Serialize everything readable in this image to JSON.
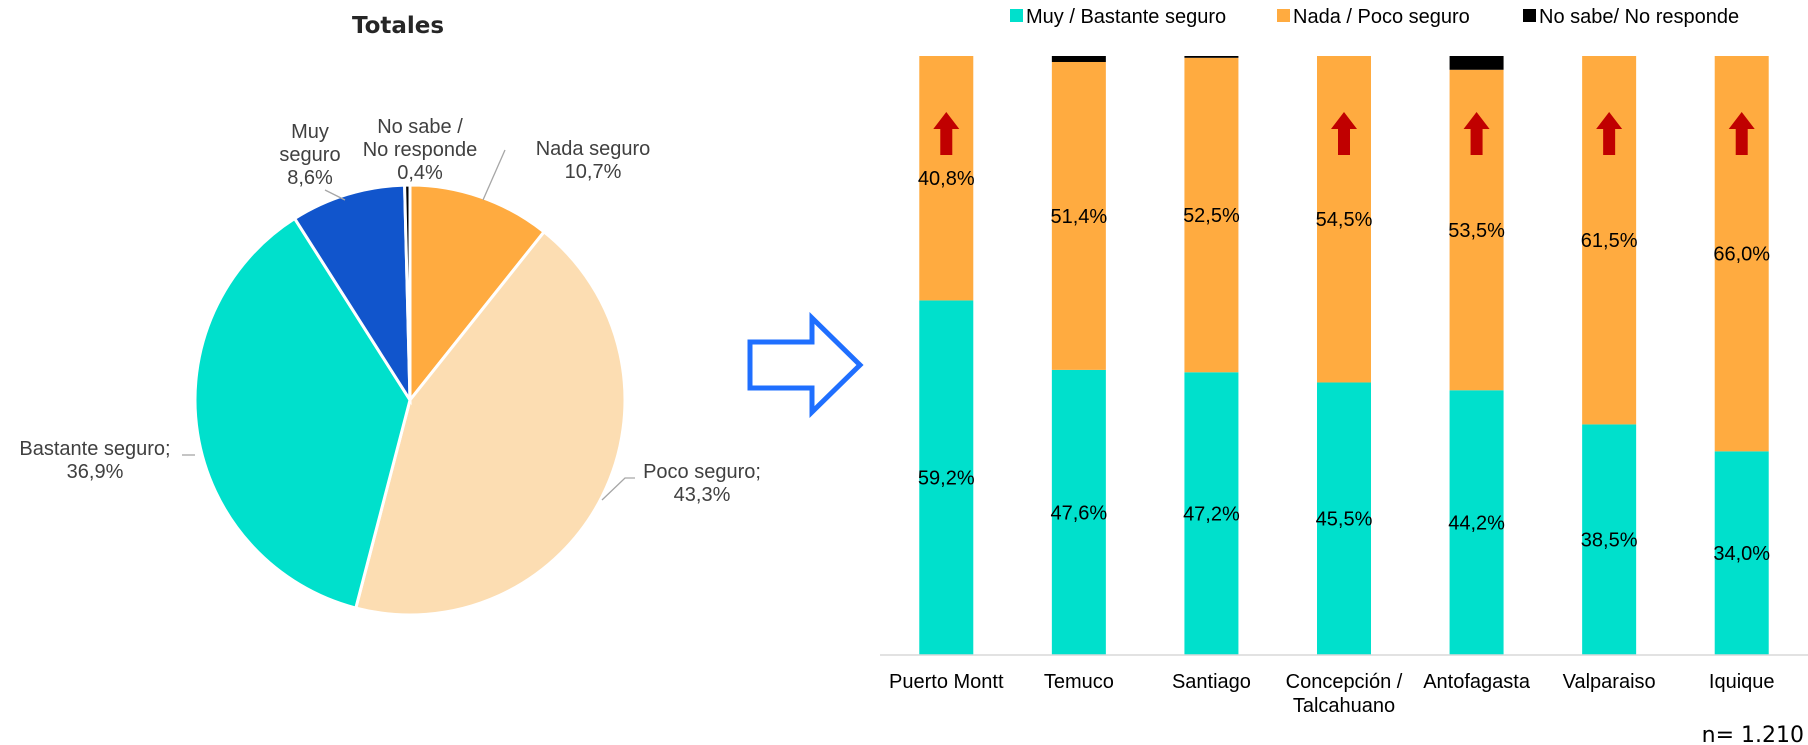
{
  "chart_data": [
    {
      "type": "pie",
      "title": "Totales",
      "slices": [
        {
          "label": [
            "Nada seguro",
            "10,7%"
          ],
          "value": 10.7,
          "color": "#FFAB40"
        },
        {
          "label": [
            "Poco seguro;",
            "43,3%"
          ],
          "value": 43.3,
          "color": "#FCDDB2"
        },
        {
          "label": [
            "Bastante seguro;",
            "36,9%"
          ],
          "value": 36.9,
          "color": "#00E0CC"
        },
        {
          "label": [
            "Muy",
            "seguro",
            "8,6%"
          ],
          "value": 8.6,
          "color": "#1155CC"
        },
        {
          "label": [
            "No sabe /",
            "No responde",
            "0,4%"
          ],
          "value": 0.4,
          "color": "#000000"
        }
      ]
    },
    {
      "type": "bar",
      "stacked": true,
      "categories": [
        [
          "Puerto Montt"
        ],
        [
          "Temuco"
        ],
        [
          "Santiago"
        ],
        [
          "Concepción /",
          "Talcahuano"
        ],
        [
          "Antofagasta"
        ],
        [
          "Valparaiso"
        ],
        [
          "Iquique"
        ]
      ],
      "series": [
        {
          "name": "Muy / Bastante seguro",
          "color": "#00E0CC",
          "values": [
            59.2,
            47.6,
            47.2,
            45.5,
            44.2,
            38.5,
            34.0
          ],
          "labels": [
            "59,2%",
            "47,6%",
            "47,2%",
            "45,5%",
            "44,2%",
            "38,5%",
            "34,0%"
          ]
        },
        {
          "name": "Nada / Poco seguro",
          "color": "#FFAB40",
          "values": [
            40.8,
            51.4,
            52.5,
            54.5,
            53.5,
            61.5,
            66.0
          ],
          "labels": [
            "40,8%",
            "51,4%",
            "52,5%",
            "54,5%",
            "53,5%",
            "61,5%",
            "66,0%"
          ]
        },
        {
          "name": "No sabe/ No responde",
          "color": "#000000",
          "values": [
            0.0,
            1.0,
            0.3,
            0.0,
            2.3,
            0.0,
            0.0
          ]
        }
      ],
      "up_arrows": [
        true,
        false,
        false,
        true,
        true,
        true,
        true
      ],
      "ylim": [
        0,
        100
      ],
      "legend": "top"
    }
  ],
  "note": "n= 1.210",
  "colors": {
    "arrow_up": "#C00000",
    "connector_arrow": "#1F6FFF"
  }
}
